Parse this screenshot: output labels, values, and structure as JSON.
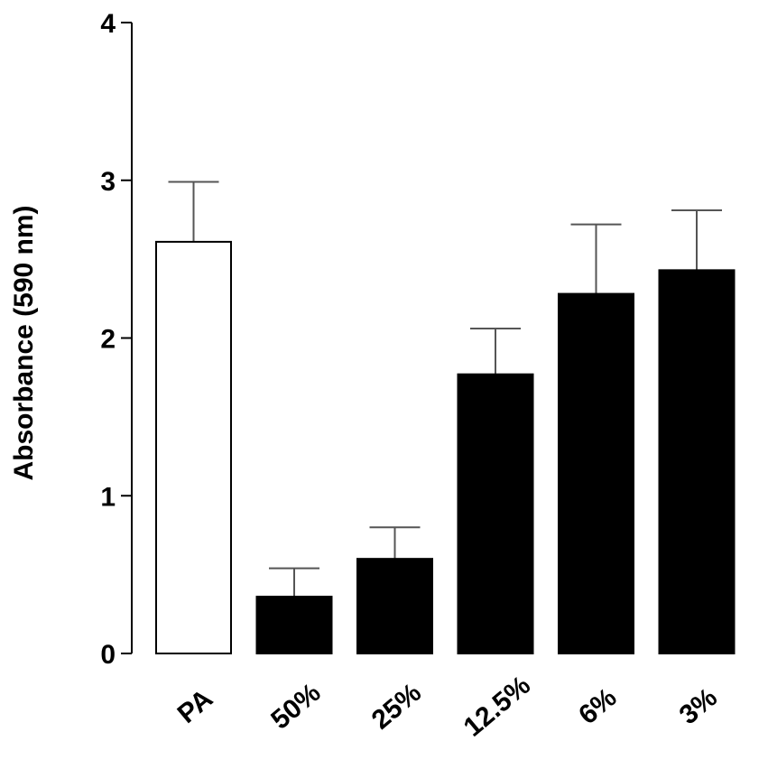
{
  "chart_data": {
    "type": "bar",
    "title": "",
    "xlabel": "",
    "ylabel": "Absorbance (590 nm)",
    "ylim": [
      0,
      4
    ],
    "yticks": [
      0,
      1,
      2,
      3,
      4
    ],
    "grid": false,
    "categories": [
      "PA",
      "50%",
      "25%",
      "12.5%",
      "6%",
      "3%"
    ],
    "values": [
      2.61,
      0.36,
      0.6,
      1.77,
      2.28,
      2.43
    ],
    "errors": [
      0.38,
      0.18,
      0.2,
      0.29,
      0.44,
      0.38
    ],
    "bar_fill": [
      "#ffffff",
      "#000000",
      "#000000",
      "#000000",
      "#000000",
      "#000000"
    ],
    "bar_stroke": "#000000",
    "error_color": "#555555"
  }
}
